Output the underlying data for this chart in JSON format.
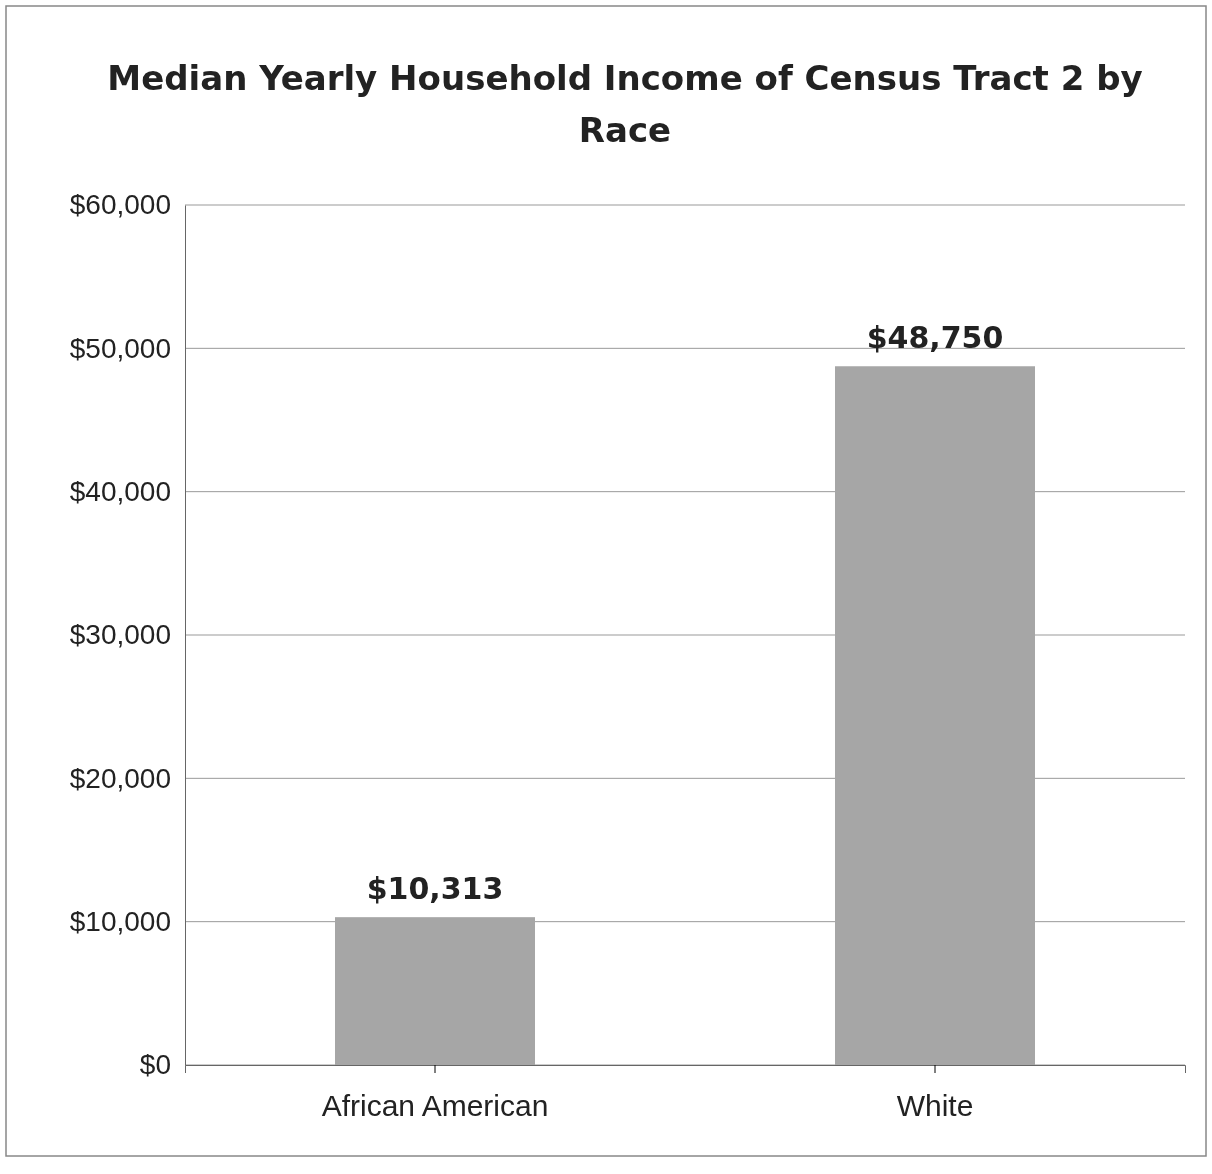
{
  "chart_data": {
    "type": "bar",
    "title": "Median Yearly Household Income of Census Tract 2 by Race",
    "categories": [
      "African American",
      "White"
    ],
    "values": [
      10313,
      48750
    ],
    "value_labels": [
      "$10,313",
      "$48,750"
    ],
    "color": "#a6a6a6",
    "ylim": [
      0,
      60000
    ],
    "yticks": [
      {
        "value": 0,
        "label": "$0"
      },
      {
        "value": 10000,
        "label": "$10,000"
      },
      {
        "value": 20000,
        "label": "$20,000"
      },
      {
        "value": 30000,
        "label": "$30,000"
      },
      {
        "value": 40000,
        "label": "$40,000"
      },
      {
        "value": 50000,
        "label": "$50,000"
      },
      {
        "value": 60000,
        "label": "$60,000"
      }
    ],
    "grid": "y"
  }
}
